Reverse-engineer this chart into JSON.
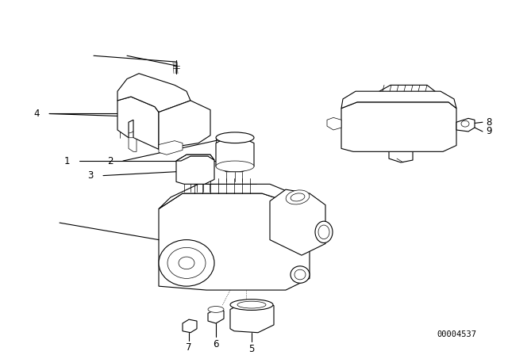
{
  "background_color": "#ffffff",
  "fig_width": 6.4,
  "fig_height": 4.48,
  "dpi": 100,
  "part_number": "00004537",
  "line_color": "#000000",
  "label_color": "#000000",
  "text_fontsize": 8.5,
  "part_num_fontsize": 7.5
}
